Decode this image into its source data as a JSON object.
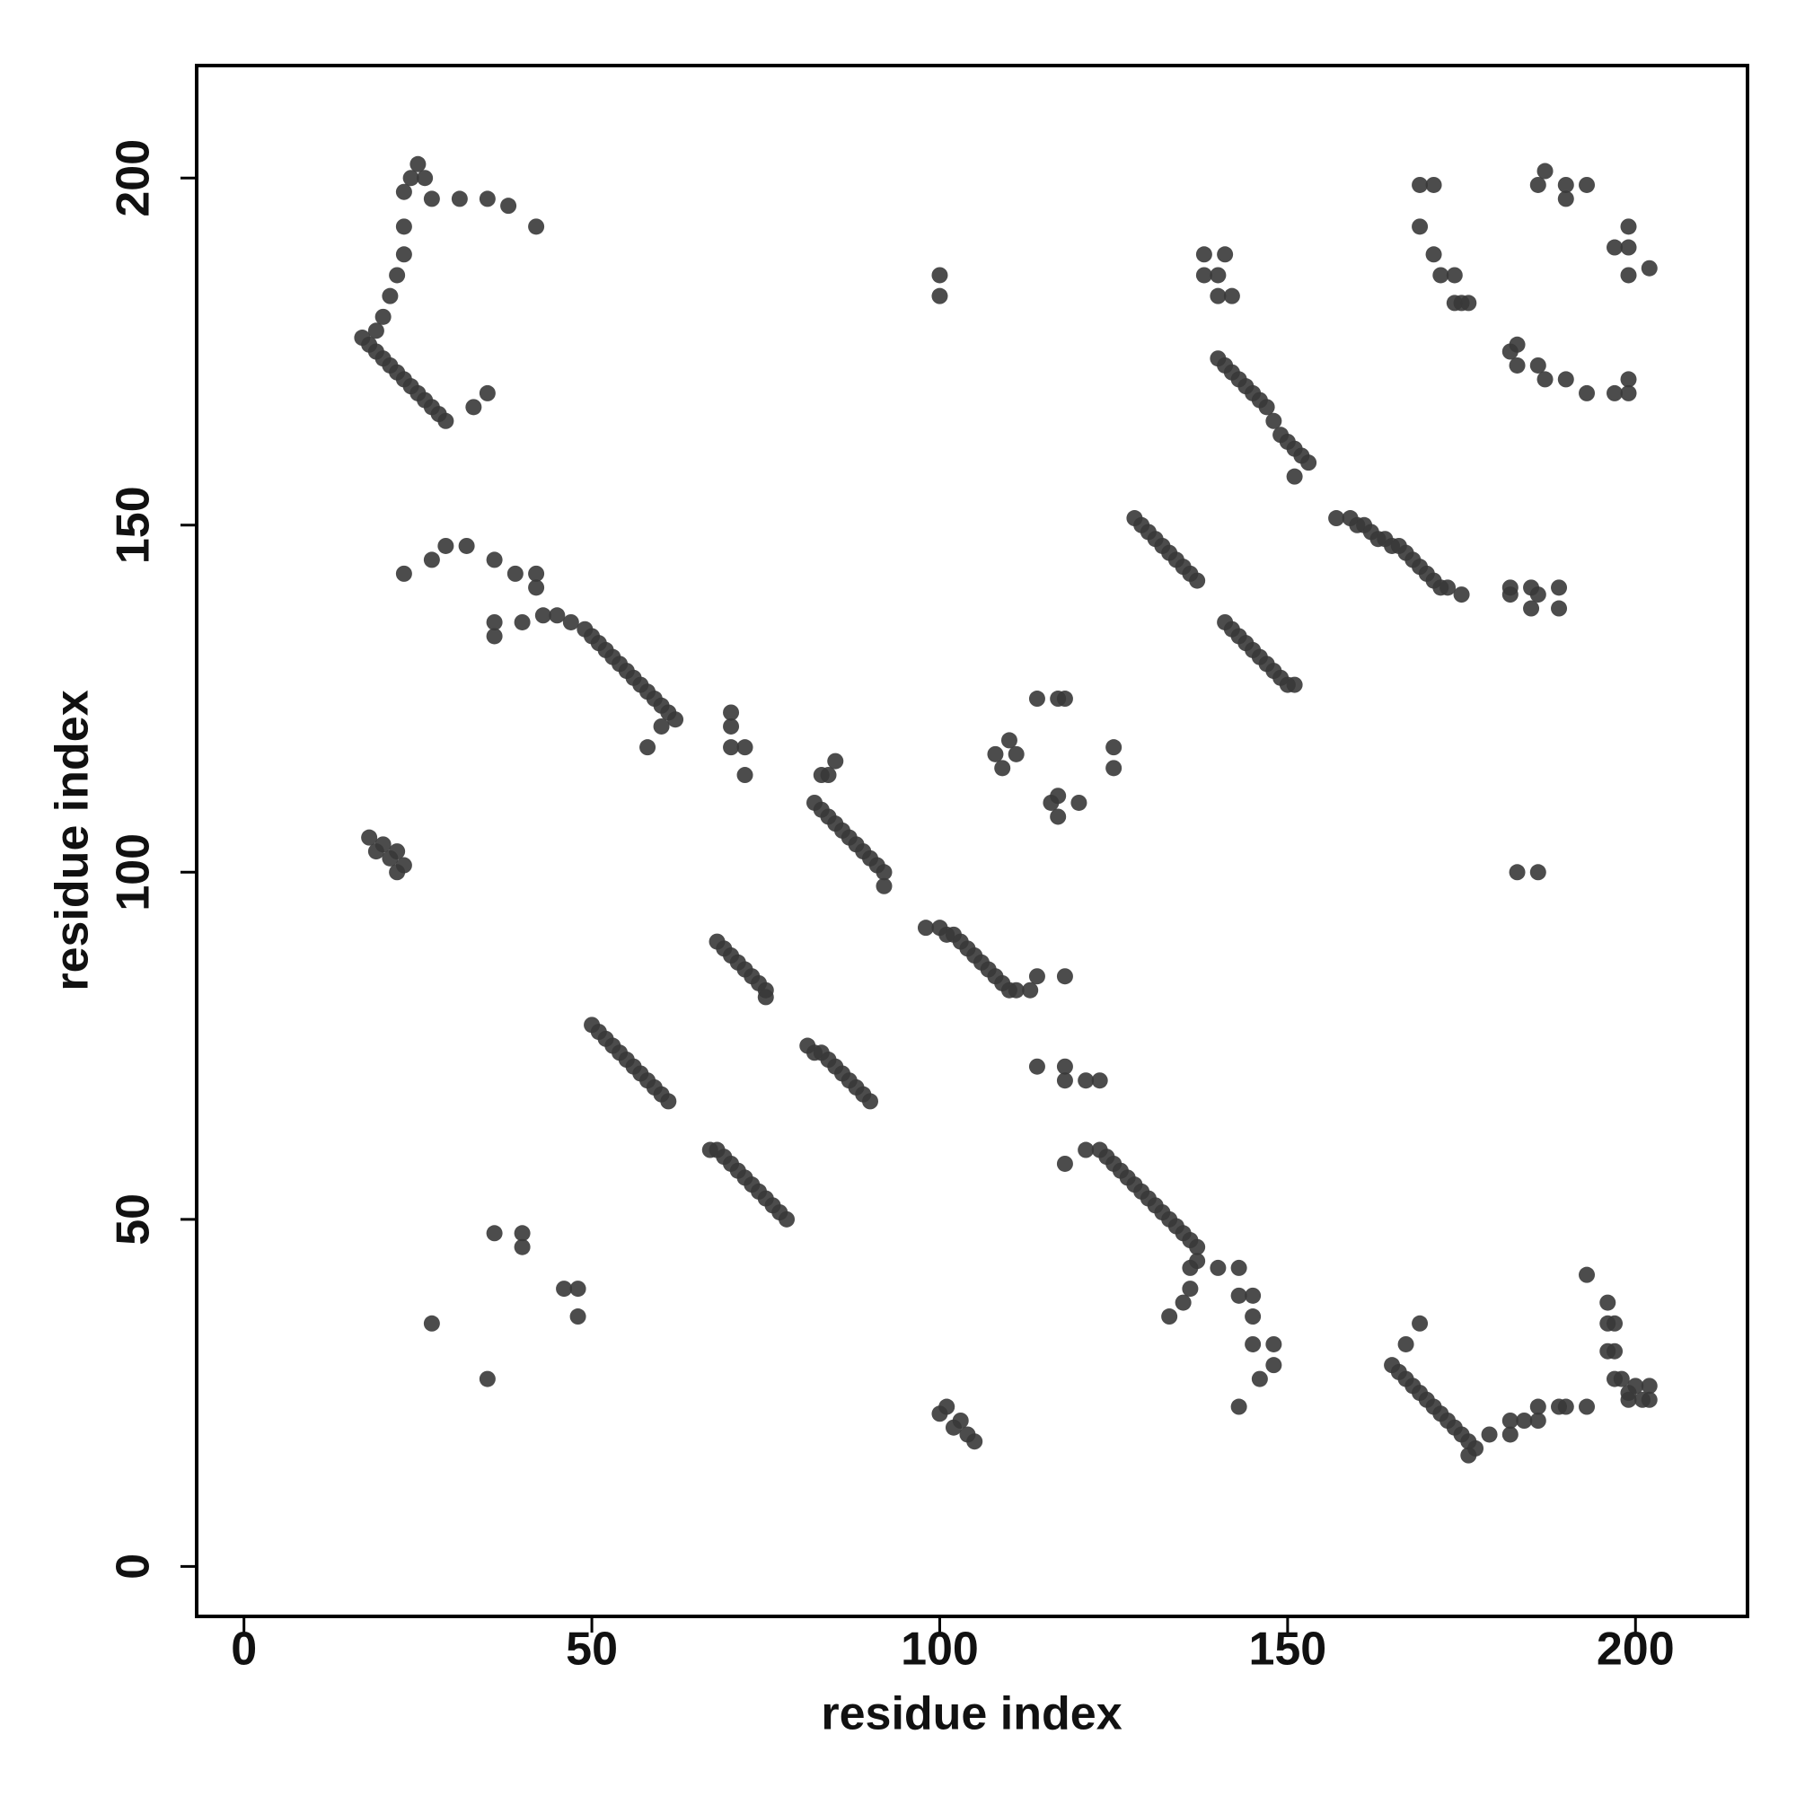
{
  "chart_data": {
    "type": "scatter",
    "xlabel": "residue index",
    "ylabel": "residue index",
    "color": "#383838",
    "xlim": [
      -6.8,
      216.1
    ],
    "ylim": [
      -7.2,
      216.2
    ],
    "xticks": [
      0,
      50,
      100,
      150,
      200
    ],
    "yticks": [
      0,
      50,
      100,
      150,
      200
    ],
    "x": [
      17,
      18,
      19,
      20,
      21,
      22,
      23,
      24,
      25,
      26,
      27,
      28,
      29,
      19,
      20,
      21,
      22,
      23,
      23,
      23,
      24,
      25,
      26,
      27,
      31,
      35,
      38,
      42,
      33,
      35,
      23,
      27,
      29,
      32,
      36,
      39,
      42,
      42,
      36,
      36,
      40,
      43,
      45,
      47,
      49,
      50,
      51,
      52,
      53,
      54,
      55,
      56,
      57,
      58,
      59,
      60,
      61,
      62,
      58,
      60,
      18,
      19,
      20,
      21,
      22,
      23,
      22,
      27,
      35,
      36,
      40,
      40,
      46,
      48,
      48,
      50,
      51,
      52,
      53,
      54,
      55,
      56,
      57,
      58,
      59,
      60,
      61,
      67,
      68,
      69,
      70,
      71,
      72,
      73,
      74,
      75,
      76,
      77,
      78,
      68,
      69,
      70,
      71,
      72,
      73,
      74,
      75,
      75,
      70,
      70,
      70,
      72,
      72,
      81,
      82,
      83,
      84,
      85,
      86,
      87,
      88,
      89,
      90,
      82,
      83,
      84,
      85,
      86,
      87,
      88,
      89,
      90,
      91,
      92,
      92,
      83,
      85,
      84,
      98,
      100,
      101,
      102,
      103,
      104,
      105,
      106,
      107,
      108,
      109,
      110,
      111,
      113,
      114,
      118,
      100,
      100,
      114,
      118,
      118,
      121,
      123,
      118,
      100,
      101,
      102,
      103,
      104,
      105,
      108,
      109,
      110,
      111,
      114,
      117,
      118,
      116,
      117,
      117,
      120,
      125,
      125,
      121,
      123,
      124,
      125,
      126,
      127,
      128,
      129,
      130,
      131,
      132,
      133,
      134,
      135,
      136,
      137,
      137,
      136,
      136,
      135,
      133,
      140,
      143,
      143,
      145,
      145,
      145,
      146,
      148,
      148,
      143,
      128,
      129,
      130,
      131,
      132,
      133,
      134,
      135,
      136,
      137,
      141,
      142,
      143,
      144,
      145,
      146,
      147,
      148,
      149,
      150,
      151,
      140,
      141,
      142,
      143,
      144,
      145,
      146,
      147,
      148,
      149,
      150,
      151,
      152,
      153,
      151,
      138,
      138,
      140,
      140,
      142,
      141,
      157,
      159,
      160,
      161,
      162,
      163,
      164,
      165,
      166,
      167,
      168,
      169,
      170,
      171,
      172,
      173,
      175,
      169,
      171,
      169,
      171,
      172,
      174,
      174,
      175,
      176,
      182,
      183,
      183,
      186,
      187,
      190,
      193,
      197,
      199,
      199,
      187,
      186,
      190,
      193,
      190,
      197,
      199,
      199,
      199,
      202,
      182,
      182,
      185,
      185,
      186,
      189,
      189,
      183,
      186,
      165,
      166,
      167,
      168,
      169,
      170,
      171,
      172,
      173,
      174,
      175,
      176,
      177,
      176,
      179,
      182,
      182,
      184,
      186,
      186,
      189,
      190,
      193,
      193,
      196,
      196,
      197,
      196,
      197,
      197,
      198,
      199,
      199,
      200,
      201,
      202,
      202,
      167,
      169
    ],
    "values": [
      177,
      176,
      175,
      174,
      173,
      172,
      171,
      170,
      169,
      168,
      167,
      166,
      165,
      178,
      180,
      183,
      186,
      189,
      193,
      198,
      200,
      202,
      200,
      197,
      197,
      197,
      196,
      193,
      167,
      169,
      143,
      145,
      147,
      147,
      145,
      143,
      143,
      141,
      136,
      134,
      136,
      137,
      137,
      136,
      135,
      134,
      133,
      132,
      131,
      130,
      129,
      128,
      127,
      126,
      125,
      124,
      123,
      122,
      118,
      121,
      105,
      103,
      104,
      102,
      103,
      101,
      100,
      35,
      27,
      48,
      48,
      46,
      40,
      40,
      36,
      78,
      77,
      76,
      75,
      74,
      73,
      72,
      71,
      70,
      69,
      68,
      67,
      60,
      60,
      59,
      58,
      57,
      56,
      55,
      54,
      53,
      52,
      51,
      50,
      90,
      89,
      88,
      87,
      86,
      85,
      84,
      83,
      82,
      123,
      121,
      118,
      118,
      114,
      75,
      74,
      74,
      73,
      72,
      71,
      70,
      69,
      68,
      67,
      110,
      109,
      108,
      107,
      106,
      105,
      104,
      103,
      102,
      101,
      100,
      98,
      114,
      116,
      114,
      92,
      92,
      91,
      91,
      90,
      89,
      88,
      87,
      86,
      85,
      84,
      83,
      83,
      83,
      85,
      85,
      186,
      183,
      72,
      72,
      70,
      70,
      70,
      58,
      22,
      23,
      20,
      21,
      19,
      18,
      117,
      115,
      119,
      117,
      125,
      125,
      125,
      110,
      111,
      108,
      110,
      118,
      115,
      60,
      60,
      59,
      58,
      57,
      56,
      55,
      54,
      53,
      52,
      51,
      50,
      49,
      48,
      47,
      46,
      44,
      43,
      40,
      38,
      36,
      43,
      43,
      39,
      39,
      36,
      32,
      27,
      32,
      29,
      23,
      151,
      150,
      149,
      148,
      147,
      146,
      145,
      144,
      143,
      142,
      136,
      135,
      134,
      133,
      132,
      131,
      130,
      129,
      128,
      127,
      127,
      174,
      173,
      172,
      171,
      170,
      169,
      168,
      167,
      165,
      163,
      162,
      161,
      160,
      159,
      157,
      189,
      186,
      186,
      183,
      183,
      189,
      151,
      151,
      150,
      150,
      149,
      148,
      148,
      147,
      147,
      146,
      145,
      144,
      143,
      142,
      141,
      141,
      140,
      199,
      199,
      193,
      189,
      186,
      186,
      182,
      182,
      182,
      175,
      176,
      173,
      173,
      171,
      171,
      169,
      169,
      171,
      169,
      201,
      199,
      199,
      199,
      197,
      190,
      190,
      193,
      186,
      187,
      141,
      140,
      141,
      138,
      140,
      141,
      138,
      100,
      100,
      29,
      28,
      27,
      26,
      25,
      24,
      23,
      22,
      21,
      20,
      19,
      18,
      17,
      16,
      19,
      19,
      21,
      21,
      21,
      23,
      23,
      23,
      23,
      42,
      38,
      35,
      35,
      31,
      31,
      27,
      27,
      25,
      24,
      26,
      24,
      26,
      24,
      32,
      35
    ]
  }
}
